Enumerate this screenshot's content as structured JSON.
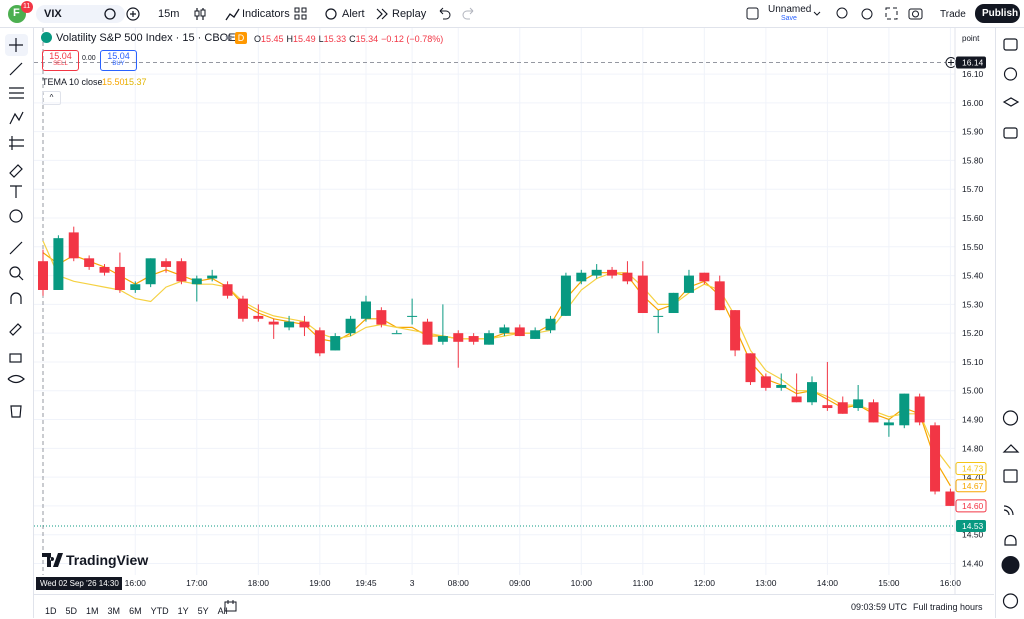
{
  "toolbar": {
    "avatar": "F",
    "badge": "11",
    "symbol": "VIX",
    "interval": "15m",
    "indicators": "Indicators",
    "alert": "Alert",
    "replay": "Replay",
    "layout_name": "Unnamed",
    "save": "Save",
    "trade": "Trade",
    "publish": "Publish"
  },
  "legend": {
    "title": "Volatility S&P 500 Index · 15 · CBOE",
    "session": "D",
    "ohlc": [
      {
        "key": "O",
        "value": "15.45"
      },
      {
        "key": "H",
        "value": "15.49"
      },
      {
        "key": "L",
        "value": "15.33"
      },
      {
        "key": "C",
        "value": "15.34"
      }
    ],
    "change": "−0.12 (−0.78%)",
    "sell": {
      "price": "15.04",
      "label": "SELL"
    },
    "spread": "0.00",
    "buy": {
      "price": "15.04",
      "label": "BUY"
    },
    "indicator": {
      "name": "TEMA 10 close",
      "values": [
        "15.50",
        "15.37"
      ]
    }
  },
  "watermark": "TradingView",
  "price_unit": "point",
  "chart_data": {
    "type": "candlestick",
    "categories": [
      null,
      null,
      null,
      null,
      null,
      null,
      "16:00",
      null,
      null,
      null,
      "17:00",
      null,
      null,
      null,
      "18:00",
      null,
      null,
      null,
      "19:00",
      null,
      null,
      "19:45",
      null,
      null,
      "3",
      null,
      null,
      "08:00",
      null,
      null,
      null,
      "09:00",
      null,
      null,
      null,
      "10:00",
      null,
      null,
      null,
      "11:00",
      null,
      null,
      null,
      "12:00",
      null,
      null,
      null,
      "13:00",
      null,
      null,
      null,
      "14:00",
      null,
      null,
      null,
      "15:00",
      null,
      null,
      null,
      "16:00"
    ],
    "open": [
      15.45,
      15.35,
      15.55,
      15.46,
      15.43,
      15.43,
      15.35,
      15.37,
      15.45,
      15.45,
      15.37,
      15.39,
      15.37,
      15.32,
      15.26,
      15.24,
      15.22,
      15.24,
      15.21,
      15.14,
      15.2,
      15.25,
      15.28,
      15.2,
      15.26,
      15.24,
      15.17,
      15.2,
      15.19,
      15.16,
      15.2,
      15.22,
      15.18,
      15.21,
      15.26,
      15.38,
      15.4,
      15.42,
      15.41,
      15.4,
      15.26,
      15.27,
      15.34,
      15.41,
      15.38,
      15.28,
      15.13,
      15.05,
      15.01,
      14.98,
      14.96,
      14.95,
      14.96,
      14.94,
      14.96,
      14.88,
      14.88,
      14.98,
      14.88,
      14.65
    ],
    "high": [
      15.49,
      15.54,
      15.57,
      15.47,
      15.44,
      15.48,
      15.38,
      15.46,
      15.46,
      15.46,
      15.4,
      15.42,
      15.38,
      15.33,
      15.3,
      15.25,
      15.26,
      15.26,
      15.22,
      15.2,
      15.26,
      15.33,
      15.29,
      15.21,
      15.32,
      15.25,
      15.3,
      15.21,
      15.2,
      15.21,
      15.23,
      15.23,
      15.22,
      15.26,
      15.41,
      15.42,
      15.44,
      15.43,
      15.45,
      15.45,
      15.28,
      15.34,
      15.42,
      15.41,
      15.4,
      15.28,
      15.13,
      15.06,
      15.06,
      15.06,
      15.05,
      15.1,
      14.98,
      15.02,
      14.97,
      14.9,
      14.99,
      14.99,
      14.89,
      14.66
    ],
    "low": [
      15.33,
      15.35,
      15.45,
      15.42,
      15.4,
      15.34,
      15.34,
      15.36,
      15.41,
      15.37,
      15.31,
      15.38,
      15.32,
      15.24,
      15.24,
      15.18,
      15.21,
      15.19,
      15.12,
      15.14,
      15.19,
      15.24,
      15.22,
      15.2,
      15.23,
      15.16,
      15.16,
      15.08,
      15.16,
      15.16,
      15.19,
      15.19,
      15.18,
      15.2,
      15.26,
      15.37,
      15.39,
      15.39,
      15.37,
      15.27,
      15.2,
      15.27,
      15.34,
      15.37,
      15.28,
      15.12,
      15.02,
      15.0,
      15.0,
      14.96,
      14.95,
      14.93,
      14.92,
      14.93,
      14.89,
      14.84,
      14.87,
      14.88,
      14.64,
      14.6
    ],
    "close": [
      15.35,
      15.53,
      15.46,
      15.43,
      15.41,
      15.35,
      15.37,
      15.46,
      15.43,
      15.38,
      15.39,
      15.4,
      15.33,
      15.25,
      15.25,
      15.23,
      15.24,
      15.22,
      15.13,
      15.19,
      15.25,
      15.31,
      15.23,
      15.2,
      15.26,
      15.16,
      15.19,
      15.17,
      15.17,
      15.2,
      15.22,
      15.19,
      15.21,
      15.25,
      15.4,
      15.41,
      15.42,
      15.4,
      15.38,
      15.27,
      15.26,
      15.34,
      15.4,
      15.38,
      15.28,
      15.14,
      15.03,
      15.01,
      15.02,
      14.96,
      15.03,
      14.94,
      14.92,
      14.97,
      14.89,
      14.89,
      14.99,
      14.89,
      14.65,
      14.6
    ],
    "up_color": "#089981",
    "down_color": "#f23645",
    "series": [
      {
        "name": "TEMA 10 close",
        "color": "#f7a600",
        "values": [
          15.48,
          15.44,
          15.47,
          15.45,
          15.43,
          15.4,
          15.37,
          15.4,
          15.42,
          15.4,
          15.38,
          15.39,
          15.36,
          15.3,
          15.27,
          15.25,
          15.24,
          15.23,
          15.18,
          15.17,
          15.2,
          15.25,
          15.25,
          15.22,
          15.22,
          15.19,
          15.19,
          15.18,
          15.18,
          15.18,
          15.2,
          15.2,
          15.2,
          15.23,
          15.32,
          15.38,
          15.41,
          15.41,
          15.4,
          15.33,
          15.28,
          15.3,
          15.36,
          15.38,
          15.33,
          15.22,
          15.1,
          15.04,
          15.02,
          14.99,
          15.0,
          14.97,
          14.94,
          14.95,
          14.92,
          14.9,
          14.94,
          14.92,
          14.76,
          14.67
        ]
      },
      {
        "name": "TEMA 10 close",
        "color": "#f5d142",
        "values": [
          15.52,
          15.4,
          15.38,
          15.37,
          15.36,
          15.35,
          15.32,
          15.31,
          15.36,
          15.38,
          15.37,
          15.37,
          15.36,
          15.31,
          15.28,
          15.26,
          15.25,
          15.24,
          15.2,
          15.18,
          15.19,
          15.22,
          15.23,
          15.22,
          15.21,
          15.2,
          15.19,
          15.18,
          15.18,
          15.18,
          15.19,
          15.2,
          15.2,
          15.21,
          15.28,
          15.35,
          15.39,
          15.41,
          15.41,
          15.36,
          15.3,
          15.3,
          15.34,
          15.37,
          15.35,
          15.26,
          15.14,
          15.07,
          15.04,
          15.0,
          15.0,
          14.98,
          14.95,
          14.95,
          14.93,
          14.91,
          14.92,
          14.92,
          14.8,
          14.73
        ]
      }
    ],
    "ylim": [
      14.36,
      16.26
    ],
    "yticks": [
      {
        "value": 14.4,
        "label": "14.40"
      },
      {
        "value": 14.5,
        "label": "14.50"
      },
      {
        "value": 14.6,
        "label": "14.60"
      },
      {
        "value": 14.7,
        "label": "14.70"
      },
      {
        "value": 14.8,
        "label": "14.80"
      },
      {
        "value": 14.9,
        "label": "14.90"
      },
      {
        "value": 15,
        "label": "15.00"
      },
      {
        "value": 15.1,
        "label": "15.10"
      },
      {
        "value": 15.2,
        "label": "15.20"
      },
      {
        "value": 15.3,
        "label": "15.30"
      },
      {
        "value": 15.4,
        "label": "15.40"
      },
      {
        "value": 15.5,
        "label": "15.50"
      },
      {
        "value": 15.6,
        "label": "15.60"
      },
      {
        "value": 15.7,
        "label": "15.70"
      },
      {
        "value": 15.8,
        "label": "15.80"
      },
      {
        "value": 15.9,
        "label": "15.90"
      },
      {
        "value": 16,
        "label": "16.00"
      },
      {
        "value": 16.1,
        "label": "16.10"
      }
    ],
    "grid": true,
    "crosshair": {
      "time_label": "Wed 02 Sep '26 14:30",
      "price": 16.14
    },
    "price_markers": [
      {
        "value": 14.73,
        "label": "14.73",
        "color": "#f5c518",
        "style": "outline"
      },
      {
        "value": 14.67,
        "label": "14.67",
        "color": "#f7a600",
        "style": "outline"
      },
      {
        "value": 14.6,
        "label": "14.60",
        "color": "#f23645",
        "style": "outline"
      },
      {
        "value": 14.53,
        "label": "14.53",
        "color": "#089981",
        "style": "filled"
      }
    ]
  },
  "bottom_bar": {
    "ranges": [
      "1D",
      "5D",
      "1M",
      "3M",
      "6M",
      "YTD",
      "1Y",
      "5Y",
      "All"
    ],
    "clock": "09:03:59 UTC",
    "session": "Full trading hours"
  }
}
